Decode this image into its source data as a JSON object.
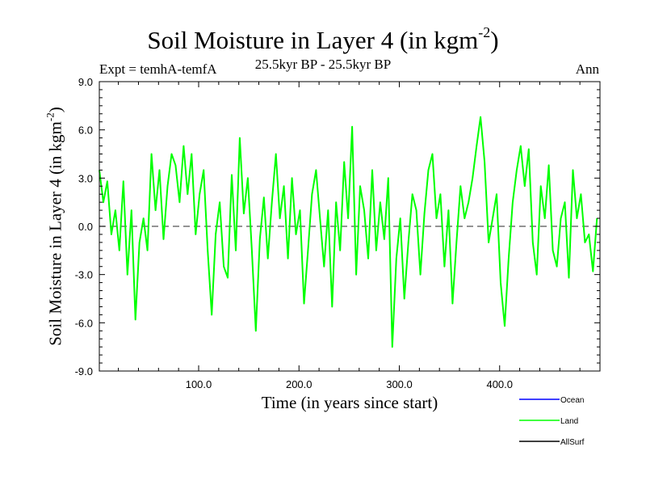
{
  "chart_data": {
    "type": "line",
    "title": "Soil Moisture in Layer 4 (in kgm",
    "title_sup": "-2",
    "title_close": ")",
    "expt_label": "Expt = temhA-temfA",
    "subtitle": "25.5kyr BP - 25.5kyr BP",
    "season": "Ann",
    "xlabel": "Time (in years since start)",
    "ylabel": "Soil Moisture in Layer 4 (in kgm",
    "ylabel_sup": "-2",
    "ylabel_close": ")",
    "xlim": [
      1,
      500
    ],
    "ylim": [
      -9,
      9
    ],
    "yticks": [
      -9,
      -6,
      -3,
      0,
      3,
      6,
      9
    ],
    "ytick_labels": [
      "-9.0",
      "-6.0",
      "-3.0",
      "0.0",
      "3.0",
      "6.0",
      "9.0"
    ],
    "xticks": [
      100,
      200,
      300,
      400
    ],
    "xtick_labels": [
      "100.0",
      "200.0",
      "300.0",
      "400.0"
    ],
    "zero_line": true,
    "legend": [
      {
        "name": "Ocean",
        "color": "#0000ff"
      },
      {
        "name": "Land",
        "color": "#00ff00"
      },
      {
        "name": "AllSurf",
        "color": "#000000"
      }
    ],
    "series": [
      {
        "name": "Land",
        "color": "#00ff00",
        "x_start": 1,
        "x_step": 4,
        "values": [
          3.5,
          1.5,
          2.8,
          -0.5,
          1.0,
          -1.5,
          2.8,
          -3.0,
          1.0,
          -5.8,
          -1.0,
          0.5,
          -1.5,
          4.5,
          1.0,
          3.5,
          -0.8,
          2.5,
          4.5,
          3.8,
          1.5,
          5.0,
          2.0,
          4.5,
          -0.5,
          2.0,
          3.5,
          -1.5,
          -5.5,
          -0.5,
          1.5,
          -2.5,
          -3.2,
          3.2,
          -1.5,
          5.5,
          0.8,
          3.0,
          -1.5,
          -6.5,
          -0.8,
          1.8,
          -2.0,
          1.5,
          4.5,
          0.5,
          2.5,
          -2.0,
          3.0,
          -0.5,
          1.0,
          -4.8,
          -1.5,
          2.0,
          3.5,
          0.5,
          -2.5,
          1.0,
          -5.0,
          1.5,
          -1.5,
          4.0,
          0.5,
          6.2,
          -3.0,
          2.5,
          1.0,
          -2.0,
          3.5,
          -1.5,
          1.5,
          -0.8,
          3.0,
          -7.5,
          -2.0,
          0.5,
          -4.5,
          -1.0,
          2.0,
          1.0,
          -3.0,
          0.8,
          3.5,
          4.5,
          0.5,
          2.0,
          -2.5,
          1.0,
          -4.8,
          -1.0,
          2.5,
          0.5,
          1.5,
          3.0,
          5.0,
          6.8,
          4.0,
          -1.0,
          0.5,
          2.0,
          -3.5,
          -6.2,
          -2.0,
          1.5,
          3.5,
          5.0,
          2.5,
          4.8,
          -1.0,
          -3.0,
          2.5,
          0.5,
          3.8,
          -1.5,
          -2.5,
          0.5,
          1.5,
          -3.2,
          3.5,
          0.5,
          2.0,
          -1.0,
          -0.5,
          -2.8,
          0.5
        ]
      }
    ]
  }
}
